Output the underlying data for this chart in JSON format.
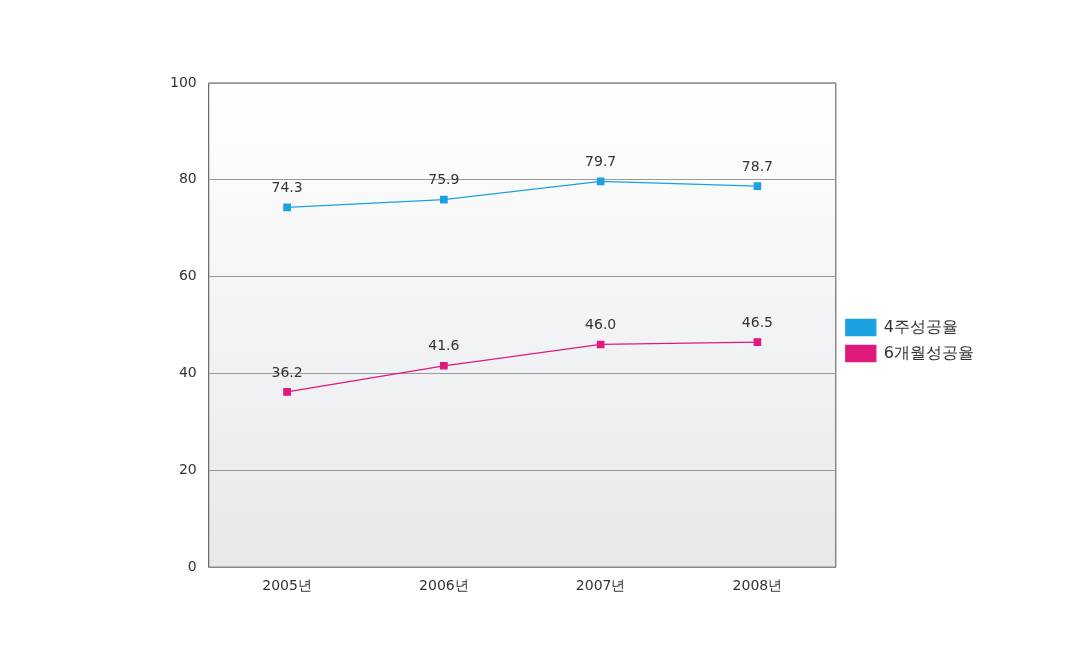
{
  "chart_data": {
    "type": "line",
    "categories": [
      "2005년",
      "2006년",
      "2007년",
      "2008년"
    ],
    "series": [
      {
        "name": "4주성공율",
        "color": "#1ba1e2",
        "values": [
          74.3,
          75.9,
          79.7,
          78.7
        ],
        "value_labels": [
          "74.3",
          "75.9",
          "79.7",
          "78.7"
        ]
      },
      {
        "name": "6개월성공율",
        "color": "#e0197d",
        "values": [
          36.2,
          41.6,
          46.0,
          46.5
        ],
        "value_labels": [
          "36.2",
          "41.6",
          "46.0",
          "46.5"
        ]
      }
    ],
    "ylim": [
      0,
      100
    ],
    "yticks": [
      0,
      20,
      40,
      60,
      80,
      100
    ],
    "grid": "y",
    "legend": "right",
    "marker": "square",
    "line_style": "solid"
  }
}
